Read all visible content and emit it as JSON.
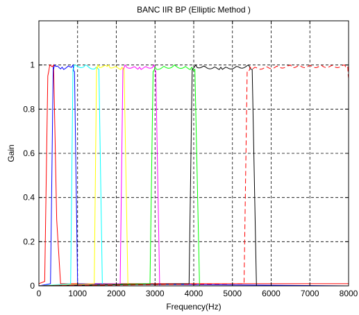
{
  "chart_data": {
    "type": "line",
    "title": "BANC IIR BP (Elliptic Method )",
    "xlabel": "Frequency(Hz)",
    "ylabel": "Gain",
    "xlim": [
      0,
      8000
    ],
    "ylim": [
      0,
      1.2
    ],
    "xticks": [
      0,
      1000,
      2000,
      3000,
      4000,
      5000,
      6000,
      7000,
      8000
    ],
    "xtick_labels": [
      "0",
      "1000",
      "2000",
      "3000",
      "4000",
      "5000",
      "6000",
      "7000",
      "8000"
    ],
    "yticks": [
      0,
      0.2,
      0.4,
      0.6,
      0.8,
      1.0
    ],
    "ytick_labels": [
      "0",
      "0.2",
      "0.4",
      "0.6",
      "0.8",
      "1"
    ],
    "grid": true,
    "passband_gain": 1.0,
    "series": [
      {
        "color": "#ff0000",
        "dash": "solid",
        "x": [
          0,
          150,
          230,
          280,
          380,
          460,
          560,
          8000
        ],
        "y": [
          0.01,
          0.02,
          0.95,
          1.0,
          1.0,
          0.3,
          0.01,
          0.01
        ]
      },
      {
        "color": "#0000ff",
        "dash": "solid",
        "x": [
          0,
          300,
          370,
          400,
          600,
          880,
          920,
          1000,
          8000
        ],
        "y": [
          0.0,
          0.01,
          0.99,
          1.0,
          0.99,
          1.0,
          0.97,
          0.01,
          0.0
        ]
      },
      {
        "color": "#00ffff",
        "dash": "solid",
        "x": [
          0,
          820,
          880,
          920,
          1200,
          1480,
          1550,
          1640,
          8000
        ],
        "y": [
          0.0,
          0.01,
          0.98,
          1.0,
          1.0,
          0.99,
          0.98,
          0.0,
          0.0
        ]
      },
      {
        "color": "#ffff00",
        "dash": "solid",
        "x": [
          0,
          1430,
          1490,
          1530,
          1800,
          2150,
          2200,
          2300,
          8000
        ],
        "y": [
          0.0,
          0.01,
          0.99,
          1.0,
          1.0,
          0.99,
          0.99,
          0.0,
          0.0
        ]
      },
      {
        "color": "#ff00ff",
        "dash": "solid",
        "x": [
          0,
          2100,
          2170,
          2230,
          2600,
          2970,
          3020,
          3120,
          8000
        ],
        "y": [
          0.0,
          0.01,
          0.98,
          1.0,
          0.99,
          1.0,
          0.97,
          0.0,
          0.0
        ]
      },
      {
        "color": "#00ff00",
        "dash": "solid",
        "x": [
          0,
          2870,
          2950,
          3000,
          3500,
          3950,
          4030,
          4150,
          8000
        ],
        "y": [
          0.0,
          0.01,
          0.97,
          0.99,
          1.0,
          0.99,
          0.98,
          0.0,
          0.0
        ]
      },
      {
        "color": "#000000",
        "dash": "solid",
        "x": [
          0,
          3880,
          3960,
          4050,
          4700,
          5420,
          5510,
          5620,
          8000
        ],
        "y": [
          0.0,
          0.01,
          0.98,
          1.0,
          0.99,
          1.0,
          0.98,
          0.0,
          0.0
        ]
      },
      {
        "color": "#ff0000",
        "dash": "dashed",
        "x": [
          0,
          5300,
          5380,
          5460,
          6500,
          7900,
          7980,
          8000
        ],
        "y": [
          0.0,
          0.01,
          0.97,
          0.99,
          1.0,
          1.0,
          0.99,
          0.94
        ]
      }
    ]
  }
}
